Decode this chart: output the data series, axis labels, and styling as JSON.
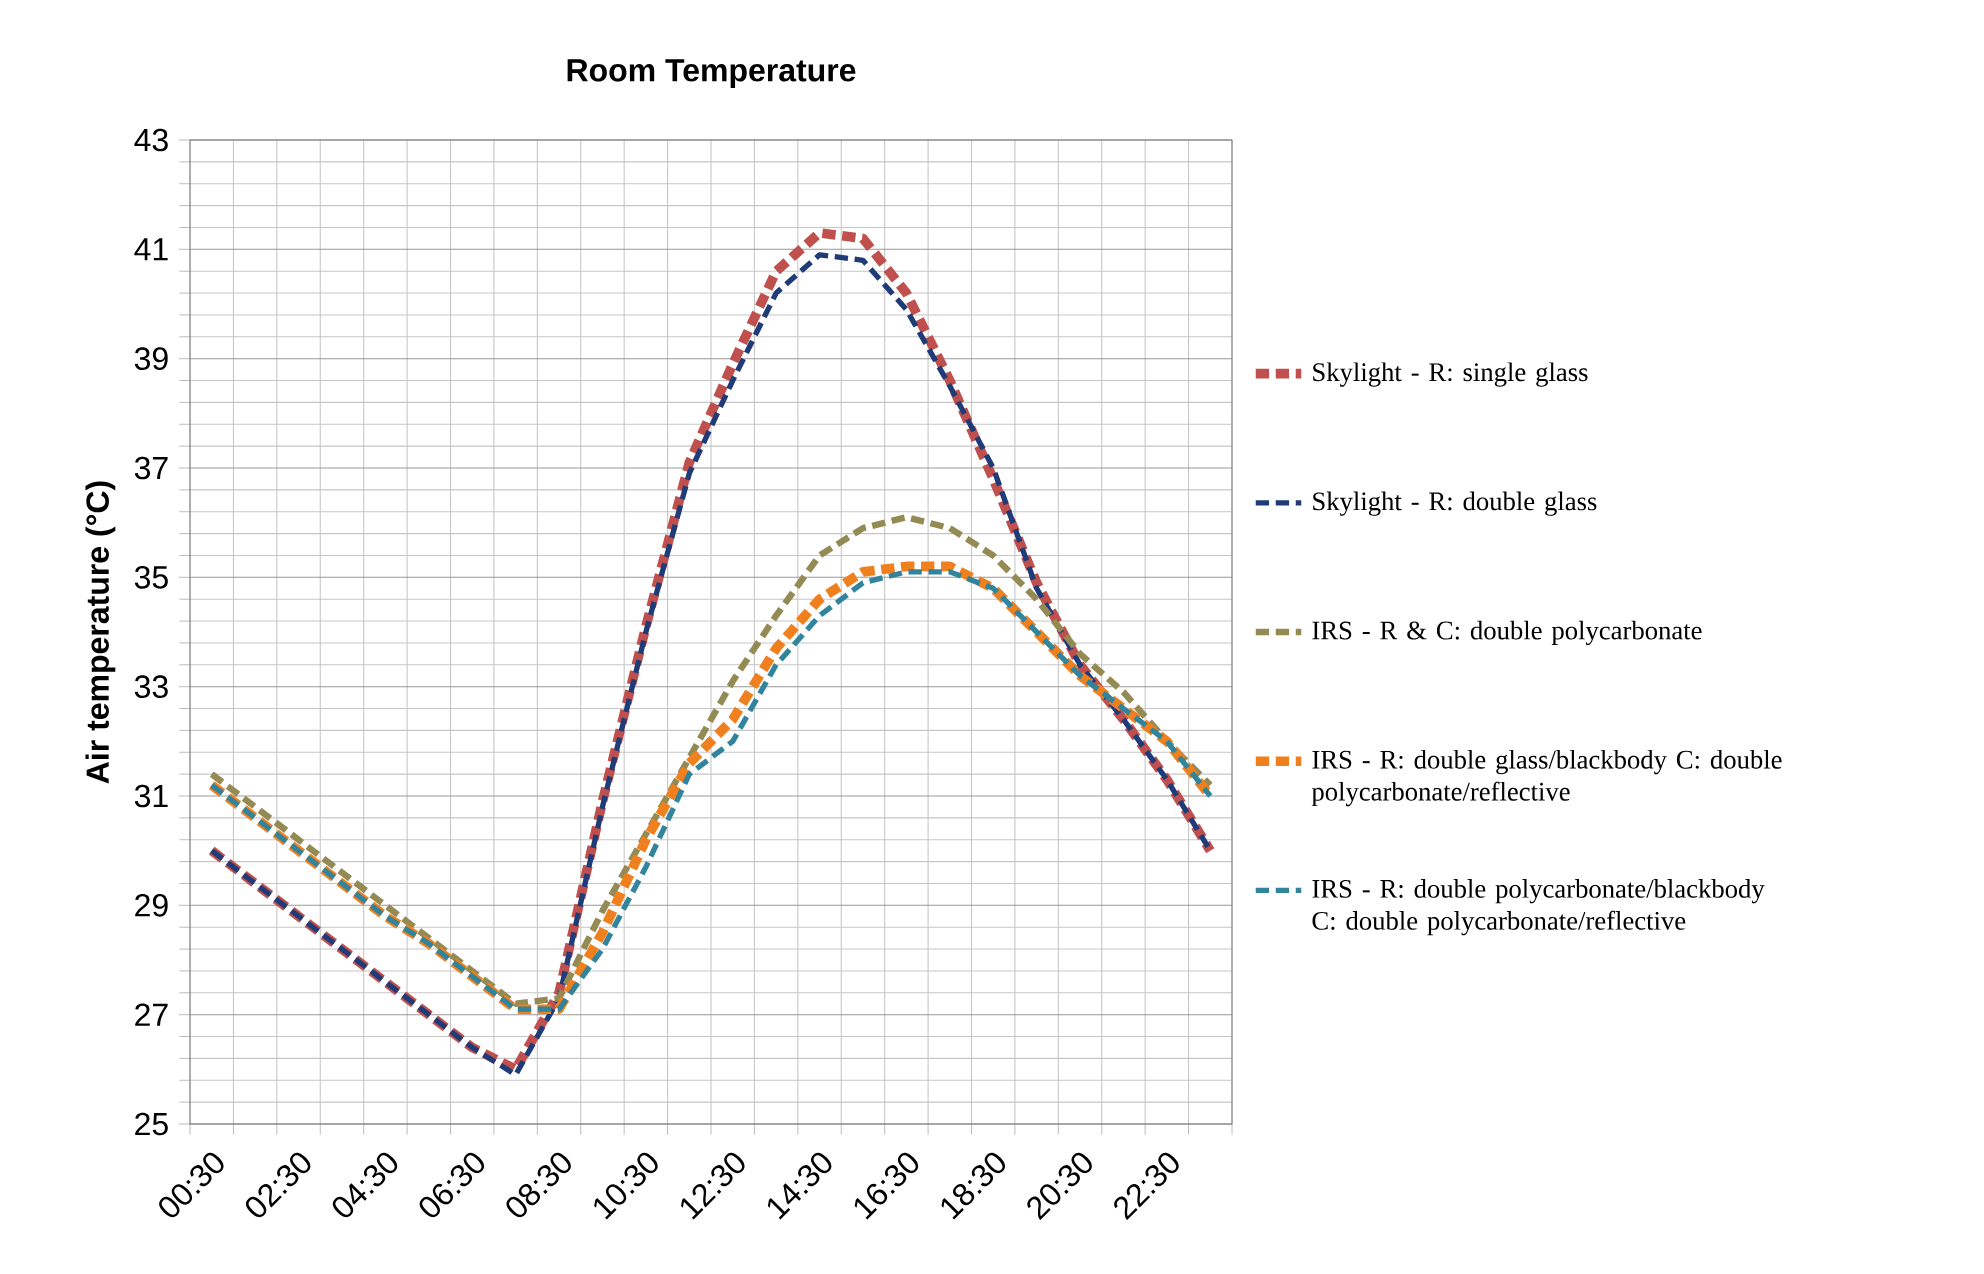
{
  "chart_data": {
    "type": "line",
    "title": "Room Temperature",
    "ylabel": "Air temperature (°C)",
    "categories": [
      "00:30",
      null,
      "02:30",
      null,
      "04:30",
      null,
      "06:30",
      null,
      "08:30",
      null,
      "10:30",
      null,
      "12:30",
      null,
      "14:30",
      null,
      "16:30",
      null,
      "18:30",
      null,
      "20:30",
      null,
      "22:30",
      null
    ],
    "series": [
      {
        "name": "Skylight - R: single glass",
        "color": "#c0504d",
        "values": [
          30.0,
          29.4,
          28.8,
          28.2,
          27.6,
          27.0,
          26.4,
          26.0,
          27.4,
          30.9,
          34.1,
          37.1,
          38.9,
          40.6,
          41.3,
          41.2,
          40.2,
          38.6,
          36.8,
          34.9,
          33.4,
          32.4,
          31.3,
          30.0
        ]
      },
      {
        "name": "Skylight - R: double glass",
        "color": "#1f3c78",
        "values": [
          30.0,
          29.4,
          28.8,
          28.2,
          27.6,
          27.0,
          26.4,
          25.9,
          27.3,
          30.8,
          34.0,
          36.9,
          38.6,
          40.2,
          40.9,
          40.8,
          39.9,
          38.5,
          37.0,
          34.8,
          33.4,
          32.4,
          31.3,
          30.0
        ]
      },
      {
        "name": "IRS - R & C: double polycarbonate",
        "color": "#948a54",
        "values": [
          31.4,
          30.8,
          30.2,
          29.6,
          29.0,
          28.4,
          27.8,
          27.2,
          27.3,
          28.9,
          30.3,
          31.7,
          33.1,
          34.3,
          35.4,
          35.9,
          36.1,
          35.9,
          35.4,
          34.6,
          33.6,
          32.9,
          32.0,
          31.2
        ]
      },
      {
        "name": "IRS - R: double glass/blackbody C: double polycarbonate/reflective",
        "color": "#f07f1e",
        "values": [
          31.2,
          30.6,
          30.0,
          29.4,
          28.8,
          28.3,
          27.7,
          27.1,
          27.1,
          28.5,
          30.2,
          31.6,
          32.4,
          33.7,
          34.6,
          35.1,
          35.2,
          35.2,
          34.8,
          34.0,
          33.2,
          32.6,
          32.0,
          31.0
        ]
      },
      {
        "name": "IRS - R:  double polycarbonate/blackbody C: double polycarbonate/reflective",
        "color": "#31849b",
        "values": [
          31.2,
          30.6,
          30.0,
          29.4,
          28.8,
          28.3,
          27.7,
          27.1,
          27.1,
          28.2,
          29.7,
          31.4,
          32.0,
          33.4,
          34.3,
          34.9,
          35.1,
          35.1,
          34.8,
          34.0,
          33.2,
          32.6,
          32.0,
          31.0
        ]
      }
    ],
    "ylim": [
      25,
      43
    ],
    "yticks": [
      25,
      27,
      29,
      31,
      33,
      35,
      37,
      39,
      41,
      43
    ],
    "grid": true,
    "legend": "right",
    "line_style": "dashed",
    "marker": "none"
  }
}
